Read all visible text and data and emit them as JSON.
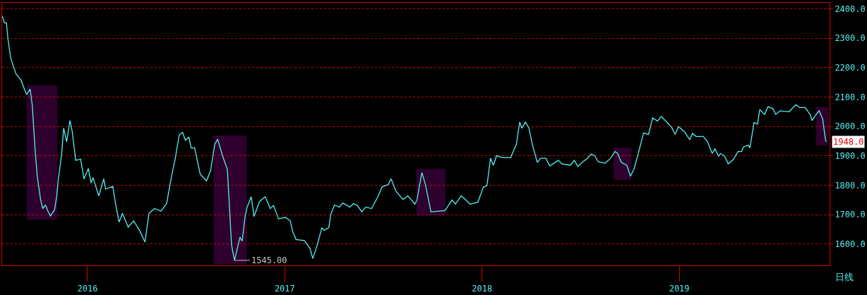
{
  "chart_data": {
    "type": "line",
    "x": [
      2015.567,
      2015.578,
      2015.589,
      2015.596,
      2015.61,
      2015.624,
      2015.638,
      2015.663,
      2015.681,
      2015.691,
      2015.709,
      2015.72,
      2015.734,
      2015.745,
      2015.762,
      2015.773,
      2015.787,
      2015.798,
      2015.812,
      2015.833,
      2015.844,
      2015.851,
      2015.869,
      2015.879,
      2015.894,
      2015.911,
      2015.922,
      2015.94,
      2015.965,
      2015.982,
      2016.004,
      2016.018,
      2016.028,
      2016.057,
      2016.082,
      2016.092,
      2016.128,
      2016.142,
      2016.16,
      2016.177,
      2016.206,
      2016.234,
      2016.266,
      2016.291,
      2016.312,
      2016.34,
      2016.372,
      2016.401,
      2016.426,
      2016.443,
      2016.465,
      2016.482,
      2016.496,
      2016.514,
      2016.525,
      2016.543,
      2016.571,
      2016.603,
      2016.624,
      2016.645,
      2016.66,
      2016.684,
      2016.709,
      2016.72,
      2016.73,
      2016.745,
      2016.773,
      2016.784,
      2016.798,
      2016.809,
      2016.83,
      2016.844,
      2016.872,
      2016.901,
      2016.926,
      2016.943,
      2016.968,
      2017.004,
      2017.028,
      2017.039,
      2017.057,
      2017.099,
      2017.128,
      2017.142,
      2017.163,
      2017.188,
      2017.199,
      2017.223,
      2017.234,
      2017.252,
      2017.277,
      2017.294,
      2017.33,
      2017.348,
      2017.369,
      2017.39,
      2017.411,
      2017.44,
      2017.472,
      2017.493,
      2017.525,
      2017.539,
      2017.564,
      2017.599,
      2017.624,
      2017.66,
      2017.67,
      2017.695,
      2017.713,
      2017.741,
      2017.812,
      2017.848,
      2017.865,
      2017.894,
      2017.915,
      2017.94,
      2017.979,
      2018.007,
      2018.025,
      2018.043,
      2018.057,
      2018.074,
      2018.103,
      2018.145,
      2018.174,
      2018.191,
      2018.202,
      2018.22,
      2018.238,
      2018.255,
      2018.28,
      2018.298,
      2018.323,
      2018.344,
      2018.387,
      2018.404,
      2018.447,
      2018.468,
      2018.486,
      2018.511,
      2018.535,
      2018.553,
      2018.571,
      2018.589,
      2018.624,
      2018.652,
      2018.674,
      2018.688,
      2018.706,
      2018.734,
      2018.752,
      2018.77,
      2018.794,
      2018.819,
      2018.844,
      2018.865,
      2018.89,
      2018.908,
      2018.929,
      2018.961,
      2018.979,
      2018.996,
      2019.025,
      2019.053,
      2019.067,
      2019.085,
      2019.121,
      2019.142,
      2019.167,
      2019.181,
      2019.199,
      2019.209,
      2019.23,
      2019.248,
      2019.273,
      2019.298,
      2019.316,
      2019.326,
      2019.351,
      2019.358,
      2019.379,
      2019.397,
      2019.408,
      2019.433,
      2019.45,
      2019.475,
      2019.489,
      2019.511,
      2019.557,
      2019.574,
      2019.592,
      2019.61,
      2019.638,
      2019.663,
      2019.674,
      2019.688,
      2019.709,
      2019.727,
      2019.741,
      2019.745
    ],
    "series": [
      {
        "color": "#54f0f0",
        "values": [
          2376,
          2353,
          2351,
          2300,
          2234,
          2204,
          2178,
          2157,
          2125,
          2108,
          2127,
          2071,
          1924,
          1831,
          1752,
          1721,
          1733,
          1714,
          1696,
          1717,
          1764,
          1815,
          1908,
          1994,
          1948,
          2020,
          1985,
          1885,
          1889,
          1822,
          1857,
          1808,
          1826,
          1764,
          1822,
          1787,
          1796,
          1738,
          1675,
          1705,
          1658,
          1679,
          1644,
          1607,
          1705,
          1721,
          1712,
          1738,
          1831,
          1885,
          1971,
          1980,
          1953,
          1964,
          1927,
          1927,
          1838,
          1815,
          1850,
          1939,
          1957,
          1901,
          1854,
          1721,
          1598,
          1545,
          1624,
          1610,
          1691,
          1726,
          1761,
          1694,
          1745,
          1761,
          1721,
          1731,
          1686,
          1691,
          1679,
          1645,
          1616,
          1612,
          1586,
          1551,
          1593,
          1656,
          1647,
          1656,
          1703,
          1733,
          1726,
          1740,
          1726,
          1738,
          1731,
          1710,
          1726,
          1721,
          1761,
          1794,
          1803,
          1822,
          1780,
          1752,
          1764,
          1736,
          1750,
          1843,
          1803,
          1710,
          1714,
          1750,
          1736,
          1764,
          1752,
          1736,
          1743,
          1794,
          1799,
          1892,
          1868,
          1901,
          1894,
          1894,
          1939,
          2015,
          1994,
          2015,
          1994,
          1939,
          1878,
          1892,
          1892,
          1866,
          1885,
          1873,
          1868,
          1885,
          1864,
          1880,
          1892,
          1906,
          1901,
          1880,
          1875,
          1892,
          1915,
          1908,
          1878,
          1868,
          1831,
          1854,
          1913,
          1978,
          1973,
          2029,
          2018,
          2034,
          2020,
          1997,
          1973,
          1999,
          1983,
          1955,
          1976,
          1966,
          1966,
          1950,
          1908,
          1924,
          1899,
          1908,
          1899,
          1873,
          1887,
          1915,
          1915,
          1931,
          1936,
          1927,
          2013,
          2008,
          2057,
          2041,
          2067,
          2060,
          2041,
          2053,
          2050,
          2062,
          2074,
          2064,
          2064,
          2041,
          2020,
          2036,
          2053,
          2025,
          1955,
          1948
        ]
      }
    ],
    "xlim": [
      2015.567,
      2019.762
    ],
    "xticks": [
      2016,
      2017,
      2018,
      2019
    ],
    "ylim": [
      1528,
      2420
    ],
    "yticks": [
      {
        "value": 1600,
        "label": "1600.0"
      },
      {
        "value": 1700,
        "label": "1700.0"
      },
      {
        "value": 1800,
        "label": "1800.0"
      },
      {
        "value": 1900,
        "label": "1900.0"
      },
      {
        "value": 2000,
        "label": "2000.0"
      },
      {
        "value": 2100,
        "label": "2100.0"
      },
      {
        "value": 2200,
        "label": "2200.0"
      },
      {
        "value": 2300,
        "label": "2300.0"
      },
      {
        "value": 2400,
        "label": "2400.0"
      }
    ],
    "grid": "y",
    "bands": [
      {
        "axis": "x",
        "from": 2015.695,
        "to": 2015.844,
        "color": "#ff00ff"
      },
      {
        "axis": "x",
        "from": 2016.642,
        "to": 2016.805,
        "color": "#ff00ff"
      },
      {
        "axis": "x",
        "from": 2017.67,
        "to": 2017.812,
        "color": "#ff00ff"
      },
      {
        "axis": "x",
        "from": 2018.67,
        "to": 2018.755,
        "color": "#ff00ff"
      },
      {
        "axis": "x",
        "from": 2019.695,
        "to": 2019.752,
        "color": "#ff00ff"
      }
    ],
    "annotations": [
      {
        "text": "1545.00",
        "x": 2016.745,
        "y": 1545
      },
      {
        "text": "1948.0",
        "x": 2019.745,
        "y": 1948
      },
      "日线"
    ]
  }
}
